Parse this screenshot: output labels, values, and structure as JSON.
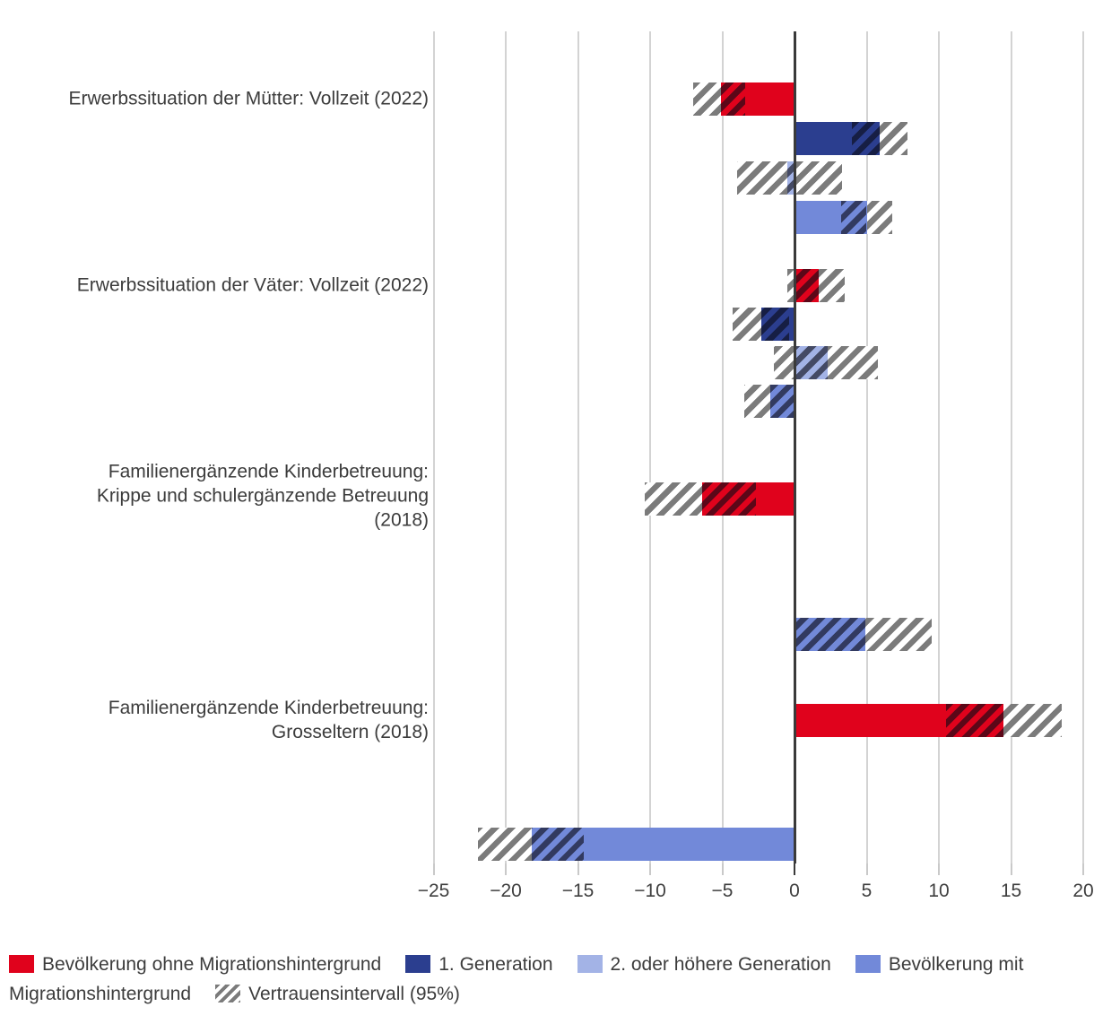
{
  "chart_data": {
    "type": "bar",
    "orientation": "horizontal",
    "title": "",
    "xlabel": "",
    "xlim": [
      -27.5,
      20.8
    ],
    "grid": true,
    "legend_position": "bottom",
    "x_ticks": [
      {
        "v": -25,
        "label": "−25"
      },
      {
        "v": -20,
        "label": "−20"
      },
      {
        "v": -15,
        "label": "−15"
      },
      {
        "v": -10,
        "label": "−10"
      },
      {
        "v": -5,
        "label": "−5"
      },
      {
        "v": 0,
        "label": "0"
      },
      {
        "v": 5,
        "label": "5"
      },
      {
        "v": 10,
        "label": "10"
      },
      {
        "v": 15,
        "label": "15"
      },
      {
        "v": 20,
        "label": "20"
      }
    ],
    "categories": [
      "Erwerbssituation der Mütter: Vollzeit (2022)",
      "Erwerbssituation der Väter: Vollzeit (2022)",
      "Familienergänzende Kinderbetreuung: Krippe und schulergänzende Betreuung (2018)",
      "Familienergänzende Kinderbetreuung: Grosseltern (2018)"
    ],
    "category_lines": [
      [
        "Erwerbssituation der Mütter: Vollzeit (2022)"
      ],
      [
        "Erwerbssituation der Väter: Vollzeit (2022)"
      ],
      [
        "Familienergänzende Kinderbetreuung:",
        "Krippe und schulergänzende Betreuung",
        "(2018)"
      ],
      [
        "Familienergänzende Kinderbetreuung:",
        "Grosseltern (2018)"
      ]
    ],
    "series": [
      {
        "name": "Bevölkerung ohne Migrationshintergrund",
        "color": "#e0021c"
      },
      {
        "name": "1. Generation",
        "color": "#2b3e8f"
      },
      {
        "name": "2. oder höhere Generation",
        "color": "#a3b3e6"
      },
      {
        "name": "Bevölkerung mit Migrationshintergrund",
        "color": "#7289d9"
      }
    ],
    "ci_legend_label": "Vertrauensintervall (95%)",
    "ci_hatch_color": "#7b7b7b",
    "bars": [
      {
        "category": 0,
        "series": 0,
        "value": -5.1,
        "ci": [
          -7.0,
          -3.4
        ]
      },
      {
        "category": 0,
        "series": 1,
        "value": 5.9,
        "ci": [
          4.0,
          7.8
        ]
      },
      {
        "category": 0,
        "series": 2,
        "value": -0.5,
        "ci": [
          -4.0,
          3.3
        ]
      },
      {
        "category": 0,
        "series": 3,
        "value": 5.0,
        "ci": [
          3.2,
          6.8
        ]
      },
      {
        "category": 1,
        "series": 0,
        "value": 1.7,
        "ci": [
          -0.5,
          3.5
        ]
      },
      {
        "category": 1,
        "series": 1,
        "value": -2.3,
        "ci": [
          -4.3,
          -0.4
        ]
      },
      {
        "category": 1,
        "series": 2,
        "value": 2.3,
        "ci": [
          -1.4,
          5.8
        ]
      },
      {
        "category": 1,
        "series": 3,
        "value": -1.7,
        "ci": [
          -3.5,
          0.1
        ]
      },
      {
        "category": 2,
        "series": 0,
        "value": -6.4,
        "ci": [
          -10.4,
          -2.7
        ]
      },
      {
        "category": 2,
        "series": 3,
        "value": 4.9,
        "ci": [
          0.1,
          9.5
        ]
      },
      {
        "category": 3,
        "series": 0,
        "value": 14.5,
        "ci": [
          10.5,
          18.5
        ]
      },
      {
        "category": 3,
        "series": 3,
        "value": -18.2,
        "ci": [
          -21.9,
          -14.6
        ]
      }
    ]
  }
}
